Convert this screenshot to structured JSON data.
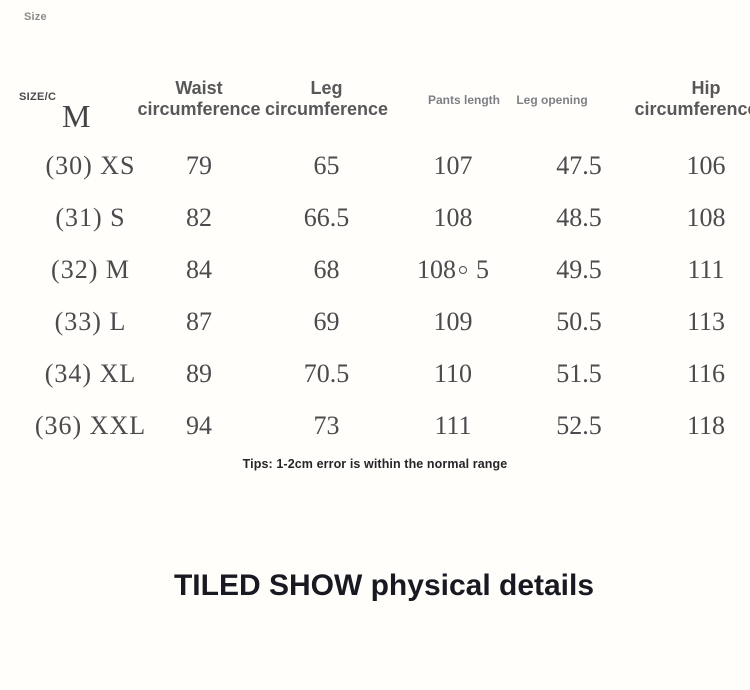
{
  "colors": {
    "background": "#fffefb",
    "table_text": "#4b4b4e",
    "main_header_text": "#58585a",
    "muted_header_text": "#7e7e85",
    "tag_text": "#8b8b8b",
    "tips_text": "#262628",
    "heading_text": "#191922"
  },
  "size_tag": {
    "label": "Size"
  },
  "size_table": {
    "headers": {
      "size": {
        "line1": "SIZE/C",
        "line2": "M"
      },
      "waist": {
        "line1": "Waist",
        "line2": "circumference"
      },
      "leg": {
        "line1": "Leg",
        "line2": "circumference"
      },
      "pants_length": "Pants length",
      "leg_opening": "Leg opening",
      "hip": {
        "line1": "Hip",
        "line2": "circumference"
      }
    },
    "rows": [
      {
        "size": "(30) XS",
        "waist": "79",
        "leg": "65",
        "pants_length": "107",
        "leg_opening": "47.5",
        "hip": "106"
      },
      {
        "size": "(31) S",
        "waist": "82",
        "leg": "66.5",
        "pants_length": "108",
        "leg_opening": "48.5",
        "hip": "108"
      },
      {
        "size": "(32) M",
        "waist": "84",
        "leg": "68",
        "pants_length": "108。5",
        "leg_opening": "49.5",
        "hip": "111"
      },
      {
        "size": "(33) L",
        "waist": "87",
        "leg": "69",
        "pants_length": "109",
        "leg_opening": "50.5",
        "hip": "113"
      },
      {
        "size": "(34) XL",
        "waist": "89",
        "leg": "70.5",
        "pants_length": "110",
        "leg_opening": "51.5",
        "hip": "116"
      },
      {
        "size": "(36) XXL",
        "waist": "94",
        "leg": "73",
        "pants_length": "111",
        "leg_opening": "52.5",
        "hip": "118"
      }
    ],
    "tips": "Tips: 1-2cm error is within the normal range"
  },
  "section_heading": {
    "title": "TILED SHOW physical details"
  }
}
